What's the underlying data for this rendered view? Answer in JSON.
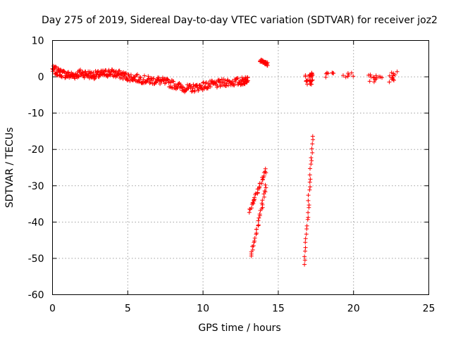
{
  "chart_data": {
    "type": "scatter",
    "title": "Day 275 of 2019, Sidereal Day-to-day VTEC variation (SDTVAR) for receiver joz2",
    "xlabel": "GPS time / hours",
    "ylabel": "SDTVAR / TECUs",
    "xlim": [
      0,
      25
    ],
    "ylim": [
      -60,
      10
    ],
    "xticks": [
      "0",
      "5",
      "10",
      "15",
      "20",
      "25"
    ],
    "yticks": [
      "10",
      "0",
      "-10",
      "-20",
      "-30",
      "-40",
      "-50",
      "-60"
    ],
    "grid": true,
    "marker": "+",
    "color": "#ff0000",
    "series": [
      {
        "name": "SDTVAR",
        "trend": [
          [
            0.0,
            2.0
          ],
          [
            0.3,
            1.5
          ],
          [
            0.6,
            1.0
          ],
          [
            1.0,
            0.5
          ],
          [
            1.4,
            0.3
          ],
          [
            1.8,
            1.0
          ],
          [
            2.2,
            0.8
          ],
          [
            2.6,
            0.5
          ],
          [
            3.0,
            0.5
          ],
          [
            3.4,
            0.8
          ],
          [
            3.8,
            1.2
          ],
          [
            4.2,
            0.8
          ],
          [
            4.6,
            0.5
          ],
          [
            5.0,
            0.0
          ],
          [
            5.5,
            -0.3
          ],
          [
            6.0,
            -0.7
          ],
          [
            6.5,
            -1.0
          ],
          [
            7.0,
            -1.0
          ],
          [
            7.5,
            -1.5
          ],
          [
            8.0,
            -2.0
          ],
          [
            8.5,
            -2.8
          ],
          [
            9.0,
            -3.3
          ],
          [
            9.5,
            -3.0
          ],
          [
            10.0,
            -2.5
          ],
          [
            10.5,
            -2.2
          ],
          [
            11.0,
            -2.0
          ],
          [
            11.5,
            -1.5
          ],
          [
            12.0,
            -1.5
          ],
          [
            12.5,
            -1.3
          ],
          [
            12.8,
            -1.0
          ],
          [
            13.0,
            0.0
          ]
        ],
        "segments": [
          {
            "x": [
              13.8,
              14.3
            ],
            "y": [
              4.5,
              3.5
            ]
          },
          {
            "x": [
              13.1,
              14.2
            ],
            "y": [
              -37,
              -25.5
            ]
          },
          {
            "x": [
              13.2,
              14.2
            ],
            "y": [
              -49.5,
              -30
            ]
          },
          {
            "x": [
              16.75,
              17.3
            ],
            "y": [
              -51.5,
              -16
            ]
          }
        ],
        "clusters": [
          {
            "x": [
              16.8,
              17.3
            ],
            "y": [
              0.5,
              0.5
            ]
          },
          {
            "x": [
              16.8,
              17.3
            ],
            "y": [
              -1.5,
              -1.5
            ]
          },
          {
            "x": [
              17.8,
              20.2
            ],
            "y": [
              0.5,
              0.5
            ]
          },
          {
            "x": [
              21.0,
              22.0
            ],
            "y": [
              -1.0,
              0.5
            ]
          },
          {
            "x": [
              22.2,
              22.9
            ],
            "y": [
              -1.5,
              1.2
            ]
          }
        ]
      }
    ]
  }
}
